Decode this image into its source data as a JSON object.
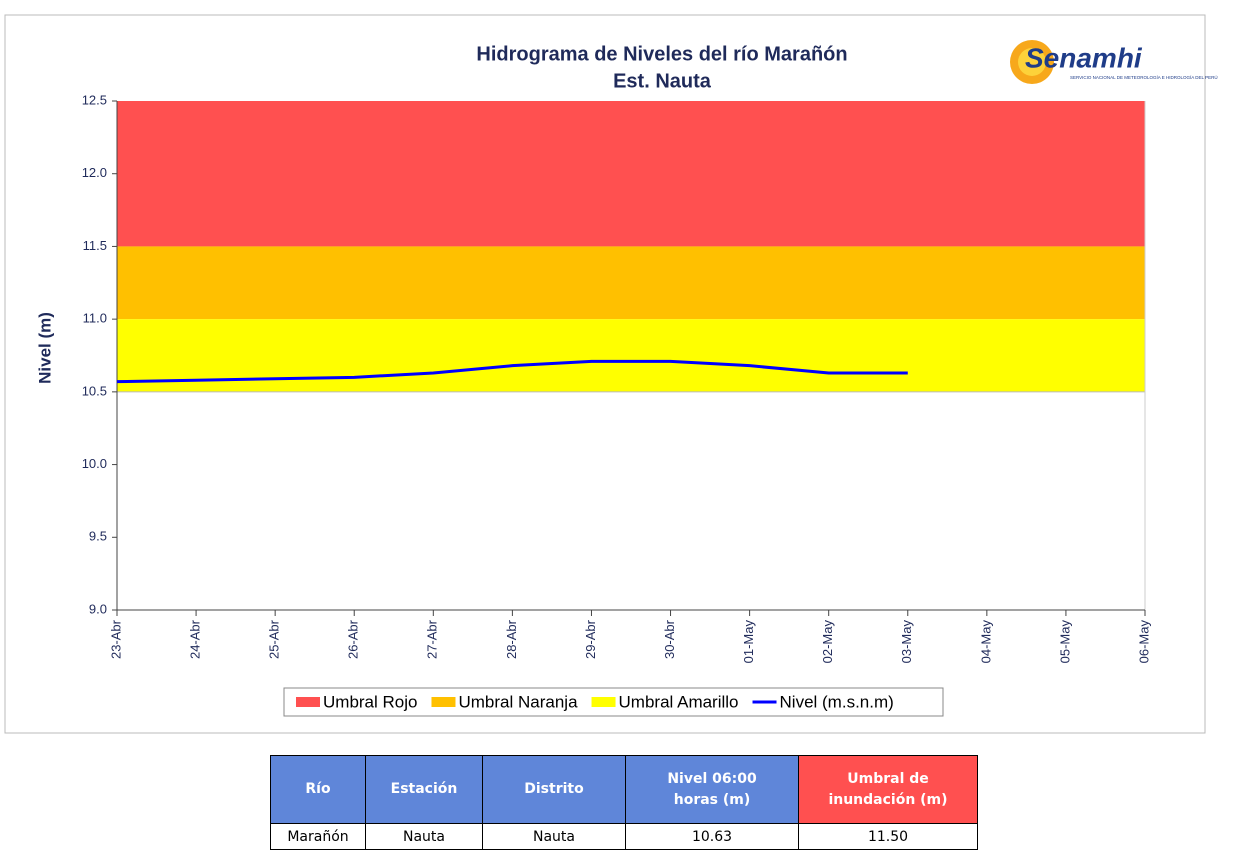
{
  "chart_data": {
    "type": "line",
    "title": "Hidrograma de Niveles del río Marañón",
    "subtitle": "Est. Nauta",
    "ylabel": "Nivel (m)",
    "logo": {
      "name": "Senamhi",
      "tagline": "SERVICIO NACIONAL DE METEOROLOGÍA E HIDROLOGÍA DEL PERÚ"
    },
    "categories": [
      "23-Abr",
      "24-Abr",
      "25-Abr",
      "26-Abr",
      "27-Abr",
      "28-Abr",
      "29-Abr",
      "30-Abr",
      "01-May",
      "02-May",
      "03-May",
      "04-May",
      "05-May",
      "06-May"
    ],
    "bands": [
      {
        "name": "Umbral Rojo",
        "color": "#ff5050",
        "from": 11.5,
        "to": 12.5
      },
      {
        "name": "Umbral Naranja",
        "color": "#ffc000",
        "from": 11.0,
        "to": 11.5
      },
      {
        "name": "Umbral Amarillo",
        "color": "#ffff00",
        "from": 10.5,
        "to": 11.0
      }
    ],
    "series": [
      {
        "name": "Nivel (m.s.n.m)",
        "color": "#0000ff",
        "values": [
          10.57,
          10.58,
          10.59,
          10.6,
          10.63,
          10.68,
          10.71,
          10.71,
          10.68,
          10.63,
          10.63,
          null,
          null,
          null
        ]
      }
    ],
    "ylim": [
      9.0,
      12.5
    ],
    "yticks": [
      {
        "value": 9,
        "label": "9.0"
      },
      9.5,
      {
        "value": 10,
        "label": "10.0"
      },
      10.5,
      {
        "value": 11,
        "label": "11.0"
      },
      11.5,
      {
        "value": 12,
        "label": "12.0"
      },
      12.5
    ],
    "grid": false
  },
  "table": {
    "header": [
      "Río",
      "Estación",
      "Distrito",
      "Nivel 06:00 horas (m)",
      "Umbral de inundación (m)"
    ],
    "rows": [
      [
        "Marañón",
        "Nauta",
        "Nauta",
        "10.63",
        "11.50"
      ]
    ]
  }
}
